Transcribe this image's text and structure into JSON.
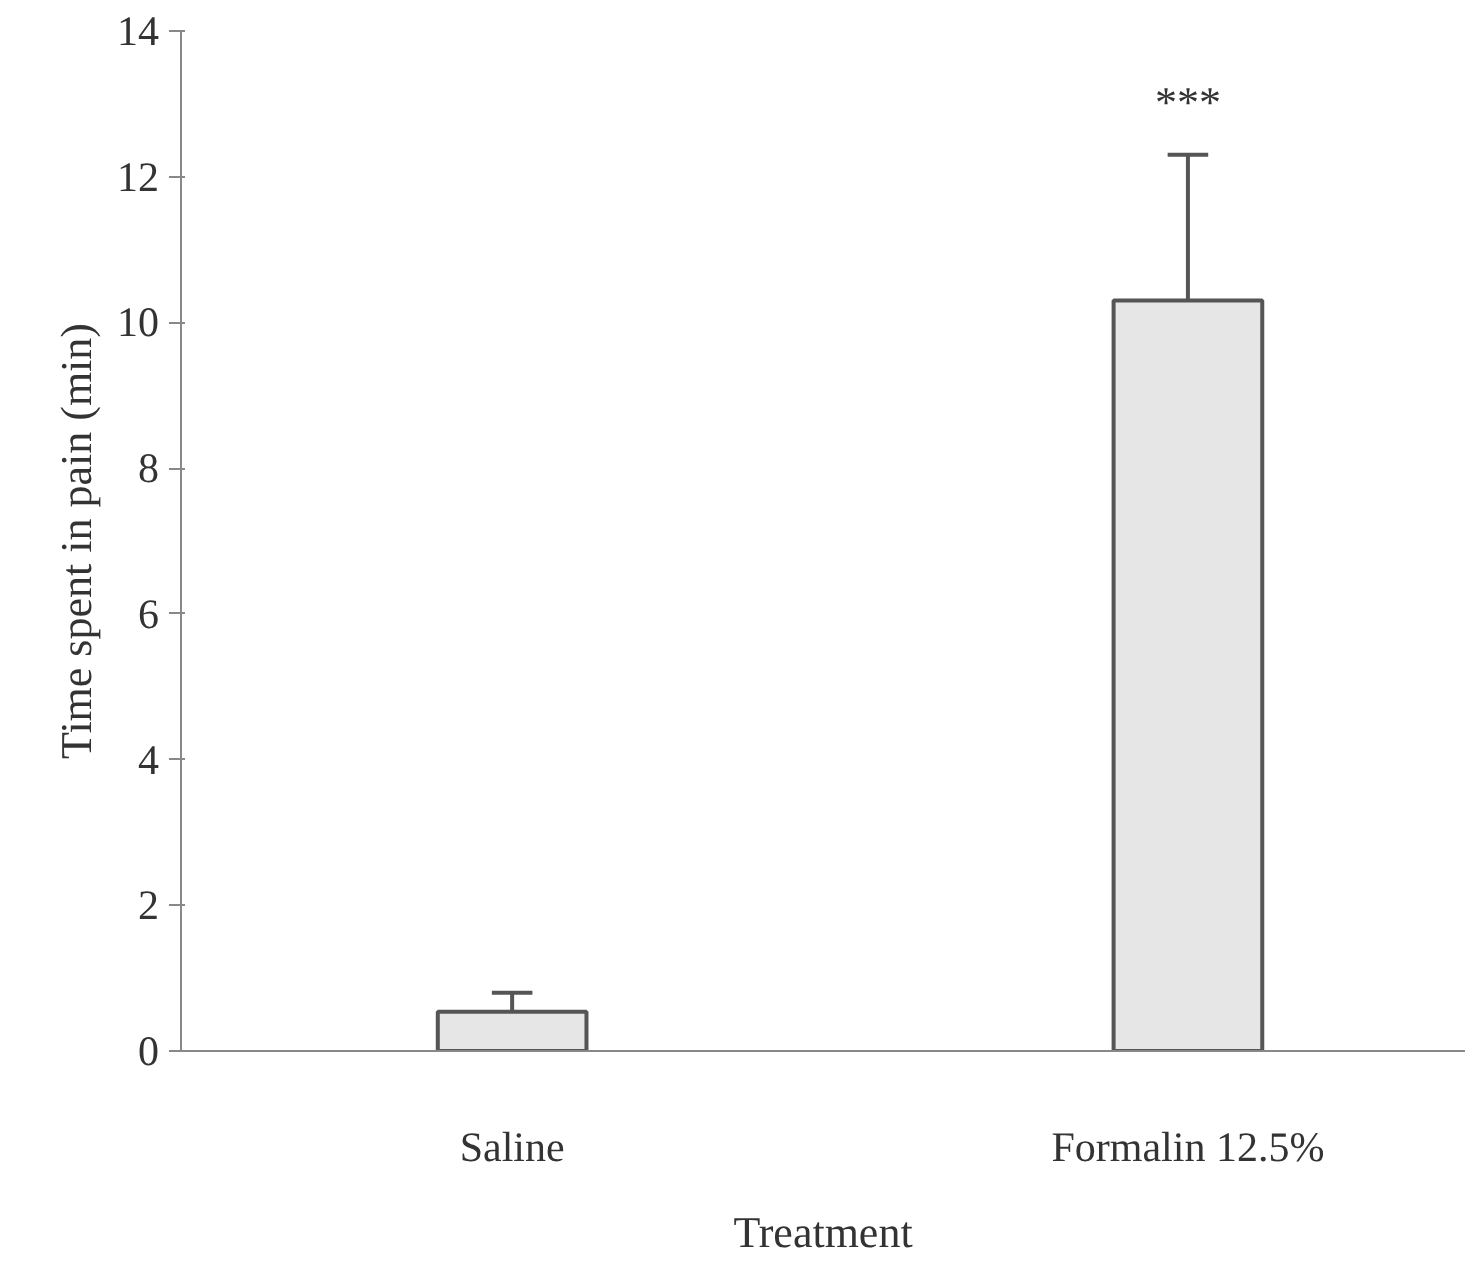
{
  "chart_data": {
    "type": "bar",
    "xlabel": "Treatment",
    "ylabel": "Time spent in pain (min)",
    "categories": [
      "Saline",
      "Formalin 12.5%"
    ],
    "values": [
      0.54,
      10.3
    ],
    "errors": [
      [
        0.54,
        0.8
      ],
      [
        10.3,
        12.3
      ]
    ],
    "color": "#e6e6e6",
    "ylim": [
      0,
      14
    ],
    "yticks": [
      0,
      2,
      4,
      6,
      8,
      10,
      12,
      14
    ],
    "grid": false,
    "annotations": [
      "***"
    ]
  }
}
